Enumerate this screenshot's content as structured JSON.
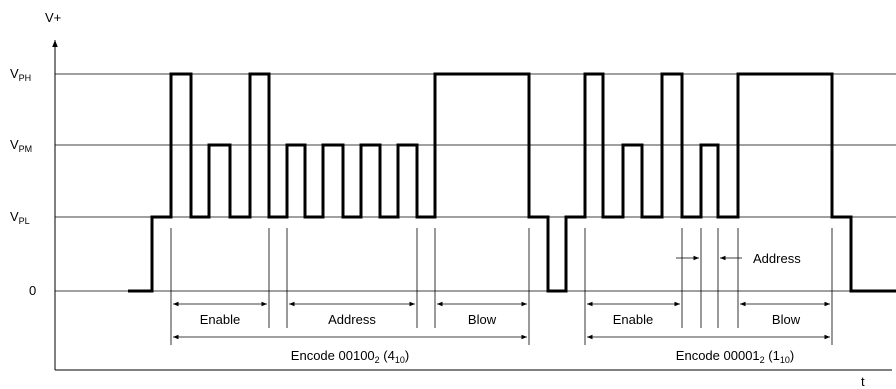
{
  "axis": {
    "y_label": "V+",
    "x_label": "t"
  },
  "levels": [
    {
      "id": "vph",
      "main": "V",
      "sub": "PH"
    },
    {
      "id": "vpm",
      "main": "V",
      "sub": "PM"
    },
    {
      "id": "vpl",
      "main": "V",
      "sub": "PL"
    },
    {
      "id": "zero",
      "main": "0",
      "sub": ""
    }
  ],
  "segments": {
    "enable_1": "Enable",
    "address_1": "Address",
    "blow_1": "Blow",
    "enable_2": "Enable",
    "address_2": "Address",
    "blow_2": "Blow"
  },
  "encodes": [
    {
      "prefix": "Encode 00100",
      "base_sub": "2",
      "paren_open": " (4",
      "dec_sub": "10",
      "paren_close": ")"
    },
    {
      "prefix": "Encode 00001",
      "base_sub": "2",
      "paren_open": " (1",
      "dec_sub": "10",
      "paren_close": ")"
    }
  ]
}
